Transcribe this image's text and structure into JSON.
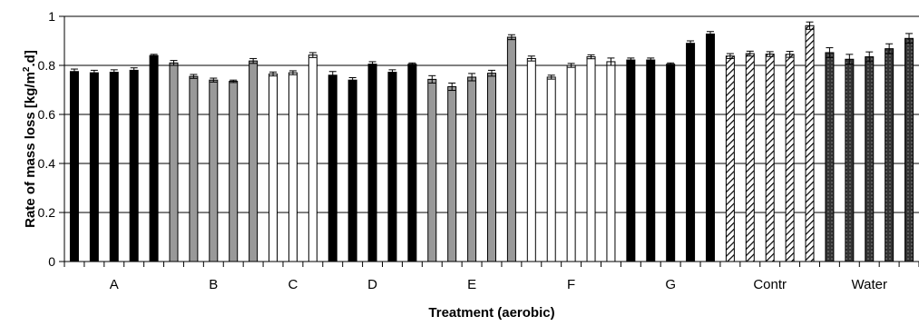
{
  "chart_data": {
    "type": "bar",
    "xlabel": "Treatment (aerobic)",
    "ylabel": "Rate of mass loss [kg/m2.d]",
    "ylabel_parts": {
      "pre": "Rate of mass loss [kg/m",
      "sup": "2",
      "post": ".d]"
    },
    "ylim": [
      0,
      1
    ],
    "yticks": [
      "0",
      "0.2",
      "0.4",
      "0.6",
      "0.8",
      "1"
    ],
    "grid": "horizontal",
    "legend": "none",
    "groups": [
      {
        "label": "A",
        "fill": "solid-black",
        "values": [
          0.775,
          0.77,
          0.772,
          0.78,
          0.84
        ],
        "errors": [
          0.01,
          0.01,
          0.01,
          0.01,
          0.005
        ]
      },
      {
        "label": "B",
        "fill": "solid-gray",
        "values": [
          0.81,
          0.755,
          0.74,
          0.735,
          0.818
        ],
        "errors": [
          0.01,
          0.008,
          0.008,
          0.005,
          0.01
        ]
      },
      {
        "label": "C",
        "fill": "white",
        "values": [
          0.765,
          0.77,
          0.842
        ],
        "errors": [
          0.008,
          0.008,
          0.01
        ]
      },
      {
        "label": "D",
        "fill": "solid-black",
        "values": [
          0.76,
          0.74,
          0.805,
          0.772,
          0.805
        ],
        "errors": [
          0.015,
          0.01,
          0.01,
          0.01,
          0.005
        ]
      },
      {
        "label": "E",
        "fill": "solid-gray",
        "values": [
          0.743,
          0.713,
          0.752,
          0.768,
          0.915
        ],
        "errors": [
          0.015,
          0.015,
          0.015,
          0.012,
          0.01
        ]
      },
      {
        "label": "F",
        "fill": "white",
        "values": [
          0.828,
          0.752,
          0.8,
          0.835,
          0.815
        ],
        "errors": [
          0.01,
          0.008,
          0.008,
          0.008,
          0.015
        ]
      },
      {
        "label": "G",
        "fill": "solid-black",
        "values": [
          0.822,
          0.822,
          0.805,
          0.89,
          0.928
        ],
        "errors": [
          0.008,
          0.008,
          0.005,
          0.01,
          0.01
        ]
      },
      {
        "label": "Contr",
        "fill": "hatched",
        "values": [
          0.838,
          0.848,
          0.846,
          0.845,
          0.962
        ],
        "errors": [
          0.01,
          0.01,
          0.01,
          0.012,
          0.015
        ]
      },
      {
        "label": "Water",
        "fill": "dotted-dark",
        "values": [
          0.852,
          0.825,
          0.835,
          0.868,
          0.91
        ],
        "errors": [
          0.02,
          0.02,
          0.02,
          0.02,
          0.02
        ]
      }
    ],
    "colors": {
      "black": "#000000",
      "gray": "#999999",
      "white": "#ffffff",
      "dark": "#333333",
      "grid": "#000000"
    }
  }
}
